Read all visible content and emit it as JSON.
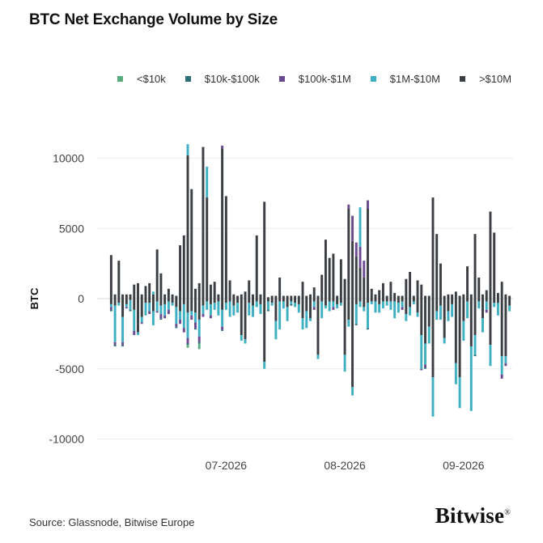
{
  "title": "BTC Net Exchange Volume by Size",
  "source": "Source: Glassnode, Bitwise Europe",
  "brand": "Bitwise",
  "brand_mark": "®",
  "chart_data": {
    "type": "bar",
    "stacked": true,
    "ylabel": "BTC",
    "xlabel": "",
    "ylim": [
      -10000,
      11000
    ],
    "yticks": [
      10000,
      5000,
      0,
      -5000,
      -10000
    ],
    "ytick_labels": [
      "10000",
      "5000",
      "0",
      "-5000",
      "-10000"
    ],
    "xtick_labels": [
      {
        "label": "07-2026",
        "at": "2026-07-01"
      },
      {
        "label": "08-2026",
        "at": "2026-08-01"
      },
      {
        "label": "09-2026",
        "at": "2026-09-01"
      }
    ],
    "grid": true,
    "legend_position": "top",
    "x": [
      "2026-06-01",
      "2026-06-02",
      "2026-06-03",
      "2026-06-04",
      "2026-06-05",
      "2026-06-06",
      "2026-06-07",
      "2026-06-08",
      "2026-06-09",
      "2026-06-10",
      "2026-06-11",
      "2026-06-12",
      "2026-06-13",
      "2026-06-14",
      "2026-06-15",
      "2026-06-16",
      "2026-06-17",
      "2026-06-18",
      "2026-06-19",
      "2026-06-20",
      "2026-06-21",
      "2026-06-22",
      "2026-06-23",
      "2026-06-24",
      "2026-06-25",
      "2026-06-26",
      "2026-06-27",
      "2026-06-28",
      "2026-06-29",
      "2026-06-30",
      "2026-07-01",
      "2026-07-02",
      "2026-07-03",
      "2026-07-04",
      "2026-07-05",
      "2026-07-06",
      "2026-07-07",
      "2026-07-08",
      "2026-07-09",
      "2026-07-10",
      "2026-07-11",
      "2026-07-12",
      "2026-07-13",
      "2026-07-14",
      "2026-07-15",
      "2026-07-16",
      "2026-07-17",
      "2026-07-18",
      "2026-07-19",
      "2026-07-20",
      "2026-07-21",
      "2026-07-22",
      "2026-07-23",
      "2026-07-24",
      "2026-07-25",
      "2026-07-26",
      "2026-07-27",
      "2026-07-28",
      "2026-07-29",
      "2026-07-30",
      "2026-07-31",
      "2026-08-01",
      "2026-08-02",
      "2026-08-03",
      "2026-08-04",
      "2026-08-05",
      "2026-08-06",
      "2026-08-07",
      "2026-08-08",
      "2026-08-09",
      "2026-08-10",
      "2026-08-11",
      "2026-08-12",
      "2026-08-13",
      "2026-08-14",
      "2026-08-15",
      "2026-08-16",
      "2026-08-17",
      "2026-08-18",
      "2026-08-19",
      "2026-08-20",
      "2026-08-21",
      "2026-08-22",
      "2026-08-23",
      "2026-08-24",
      "2026-08-25",
      "2026-08-26",
      "2026-08-27",
      "2026-08-28",
      "2026-08-29",
      "2026-08-30",
      "2026-08-31",
      "2026-09-01",
      "2026-09-02",
      "2026-09-03",
      "2026-09-04",
      "2026-09-05",
      "2026-09-06",
      "2026-09-07",
      "2026-09-08",
      "2026-09-09",
      "2026-09-10",
      "2026-09-11",
      "2026-09-12",
      "2026-09-13"
    ],
    "series": [
      {
        "name": "<$10k",
        "color": "#5aab7e",
        "values": [
          0,
          0,
          0,
          0,
          0,
          0,
          0,
          0,
          0,
          0,
          0,
          0,
          0,
          0,
          0,
          0,
          0,
          0,
          0,
          0,
          -200,
          0,
          0,
          -400,
          0,
          0,
          0,
          0,
          0,
          0,
          0,
          0,
          0,
          0,
          0,
          0,
          0,
          0,
          0,
          0,
          0,
          0,
          0,
          0,
          0,
          0,
          0,
          0,
          0,
          0,
          0,
          0,
          0,
          0,
          0,
          0,
          0,
          0,
          0,
          0,
          0,
          0,
          0,
          0,
          0,
          0,
          0,
          0,
          0,
          0,
          0,
          0,
          0,
          0,
          0,
          0,
          0,
          0,
          0,
          0,
          0,
          0,
          0,
          0,
          0,
          0,
          0,
          0,
          0,
          0,
          0,
          0,
          0,
          0,
          0,
          0,
          0,
          0,
          0,
          0,
          0,
          0,
          0,
          0,
          0
        ]
      },
      {
        "name": "$10k-$100k",
        "color": "#2f6f7a",
        "values": [
          -100,
          -100,
          0,
          -100,
          0,
          -100,
          0,
          0,
          0,
          0,
          0,
          0,
          0,
          -100,
          0,
          0,
          0,
          -100,
          0,
          0,
          -100,
          0,
          -100,
          -100,
          0,
          0,
          0,
          0,
          0,
          -100,
          0,
          0,
          0,
          0,
          0,
          0,
          0,
          0,
          0,
          0,
          0,
          -100,
          0,
          0,
          0,
          0,
          0,
          -100,
          0,
          0,
          0,
          0,
          0,
          0,
          0,
          0,
          0,
          0,
          0,
          0,
          0,
          0,
          0,
          0,
          -100,
          0,
          0,
          -100,
          0,
          0,
          0,
          0,
          0,
          0,
          0,
          0,
          0,
          0,
          0,
          0,
          0,
          0,
          -100,
          0,
          0,
          0,
          0,
          0,
          0,
          0,
          0,
          0,
          0,
          0,
          0,
          -100,
          0,
          0,
          0,
          0,
          0,
          0,
          0,
          0,
          0
        ]
      },
      {
        "name": "$100k-$1M",
        "color": "#6b4a8f",
        "values": [
          -200,
          -200,
          0,
          -200,
          -100,
          0,
          -300,
          0,
          -100,
          0,
          -200,
          0,
          -100,
          -300,
          -200,
          -300,
          0,
          -200,
          -300,
          -300,
          -400,
          -300,
          -400,
          -400,
          -200,
          0,
          -200,
          0,
          0,
          -200,
          0,
          0,
          0,
          0,
          0,
          0,
          0,
          0,
          0,
          0,
          0,
          0,
          0,
          0,
          0,
          0,
          0,
          0,
          0,
          0,
          0,
          0,
          0,
          -200,
          0,
          0,
          0,
          0,
          -200,
          0,
          0,
          0,
          0,
          0,
          0,
          0,
          0,
          0,
          0,
          0,
          0,
          0,
          0,
          0,
          0,
          0,
          -200,
          0,
          0,
          0,
          0,
          -100,
          -200,
          0,
          0,
          0,
          0,
          0,
          0,
          0,
          0,
          0,
          0,
          0,
          0,
          0,
          0,
          0,
          -200,
          0,
          0,
          0,
          -300,
          -200,
          0
        ]
      },
      {
        "name": "$1M-$10M",
        "color": "#3fb0c2",
        "values": [
          -200,
          -2600,
          -200,
          -1800,
          -200,
          -700,
          -1500,
          -200,
          -400,
          -900,
          -600,
          -1000,
          -700,
          -600,
          -800,
          -600,
          -200,
          -1200,
          -600,
          -1700,
          -1800,
          -300,
          -700,
          -1200,
          -600,
          -600,
          -800,
          -500,
          -1000,
          -1200,
          -500,
          -1100,
          -700,
          -700,
          -400,
          -300,
          -900,
          -800,
          -400,
          -700,
          -500,
          -600,
          -200,
          -1300,
          -2000,
          -500,
          -1000,
          -200,
          -300,
          -600,
          -800,
          -1200,
          -200,
          -400,
          -300,
          -1200,
          -200,
          -700,
          -400,
          -300,
          -200,
          -1200,
          -500,
          -600,
          -1400,
          -400,
          -300,
          -1800,
          -200,
          -800,
          -600,
          -500,
          -300,
          -600,
          -1200,
          -700,
          -400,
          -500,
          -600,
          -200,
          -300,
          -2400,
          -1500,
          -1200,
          -2800,
          -600,
          -1000,
          -400,
          -700,
          -900,
          -1500,
          -2200,
          -1400,
          -1200,
          -4600,
          -1400,
          -500,
          -1000,
          -600,
          -1500,
          -300,
          -900,
          -1300,
          -500,
          -400
        ]
      },
      {
        "name": ">$10M",
        "color": "#3b3f43",
        "values": [
          -400,
          -500,
          -300,
          -1300,
          -400,
          -100,
          -800,
          -2400,
          -1300,
          -300,
          -300,
          -900,
          -200,
          -500,
          -400,
          -200,
          -300,
          -600,
          -900,
          -400,
          -1000,
          -900,
          -1000,
          -1500,
          -500,
          -200,
          -400,
          -300,
          -200,
          -800,
          -300,
          -200,
          -500,
          -300,
          -2600,
          -2900,
          -300,
          -500,
          -200,
          -400,
          -4500,
          -200,
          -300,
          -1600,
          -200,
          -200,
          -600,
          -200,
          -300,
          -400,
          -1400,
          -900,
          -1400,
          -200,
          -4000,
          -200,
          -500,
          -200,
          -200,
          -400,
          -300,
          -4000,
          -1500,
          -6300,
          -400,
          -200,
          -600,
          -300,
          -200,
          -200,
          -400,
          -200,
          -200,
          -200,
          -200,
          -300,
          -200,
          -1100,
          -600,
          -200,
          -1000,
          -2600,
          -3200,
          -2000,
          -5600,
          -900,
          -500,
          -2800,
          -900,
          -400,
          -4600,
          -5600,
          -1600,
          -200,
          -3400,
          -2600,
          -200,
          -1400,
          -200,
          -3300,
          -300,
          -300,
          -4100,
          -4100,
          -500
        ]
      }
    ],
    "series_pos": [
      {
        "name": ">$10M",
        "values": [
          3100,
          300,
          2700,
          300,
          300,
          300,
          1000,
          1100,
          300,
          900,
          1100,
          300,
          3500,
          1800,
          300,
          700,
          300,
          200,
          3800,
          4500,
          10200,
          7800,
          700,
          1100,
          10800,
          7200,
          1000,
          1200,
          300,
          10700,
          7300,
          1300,
          300,
          200,
          300,
          500,
          1300,
          300,
          4500,
          300,
          6900,
          100,
          200,
          200,
          1500,
          200,
          200,
          200,
          200,
          200,
          1200,
          200,
          300,
          800,
          200,
          1700,
          4200,
          2900,
          3200,
          200,
          2800,
          1400,
          6400,
          4100,
          3000,
          2200,
          1500,
          6400,
          700,
          300,
          600,
          1100,
          200,
          1200,
          400,
          200,
          200,
          1400,
          1900,
          200,
          1300,
          1000,
          200,
          200,
          7200,
          4600,
          2500,
          200,
          300,
          300,
          500,
          200,
          300,
          2300,
          300,
          4600,
          1500,
          300,
          600,
          6200,
          4700,
          400,
          1200,
          300,
          200
        ]
      },
      {
        "name": "$100k-$1M",
        "values": [
          0,
          0,
          0,
          0,
          0,
          0,
          0,
          0,
          0,
          0,
          0,
          0,
          0,
          0,
          0,
          0,
          0,
          0,
          0,
          0,
          0,
          0,
          0,
          0,
          0,
          0,
          0,
          0,
          0,
          200,
          0,
          0,
          0,
          0,
          0,
          0,
          0,
          0,
          0,
          0,
          0,
          0,
          0,
          0,
          0,
          0,
          0,
          0,
          0,
          0,
          0,
          0,
          0,
          0,
          0,
          0,
          0,
          0,
          0,
          0,
          0,
          0,
          300,
          1800,
          1000,
          1500,
          1200,
          600,
          0,
          0,
          0,
          0,
          0,
          0,
          0,
          0,
          0,
          0,
          0,
          0,
          0,
          0,
          0,
          0,
          0,
          0,
          0,
          0,
          0,
          0,
          0,
          0,
          0,
          0,
          0,
          0,
          0,
          0,
          0,
          0,
          0,
          0,
          0,
          0
        ]
      },
      {
        "name": "$1M-$10M",
        "values": [
          0,
          0,
          0,
          0,
          0,
          0,
          0,
          0,
          0,
          0,
          0,
          200,
          0,
          0,
          0,
          0,
          0,
          0,
          0,
          0,
          800,
          0,
          0,
          0,
          0,
          2200,
          0,
          0,
          0,
          0,
          0,
          0,
          0,
          0,
          0,
          0,
          0,
          0,
          0,
          0,
          0,
          0,
          0,
          0,
          0,
          0,
          0,
          0,
          0,
          0,
          0,
          0,
          0,
          0,
          0,
          0,
          0,
          0,
          0,
          0,
          0,
          0,
          0,
          0,
          0,
          2800,
          0,
          0,
          0,
          0,
          0,
          0,
          0,
          0,
          0,
          0,
          0,
          0,
          0,
          0,
          0,
          0,
          0,
          0,
          0,
          0,
          0,
          0,
          0,
          0,
          0,
          0,
          0,
          0,
          0,
          0,
          0,
          0,
          0,
          0,
          0,
          0,
          0,
          0,
          0
        ]
      },
      {
        "name": "$10k-$100k",
        "values": [
          0,
          0,
          0,
          0,
          0,
          0,
          0,
          0,
          0,
          0,
          0,
          0,
          0,
          0,
          0,
          0,
          0,
          0,
          0,
          0,
          0,
          0,
          0,
          0,
          0,
          0,
          0,
          0,
          0,
          0,
          0,
          0,
          0,
          0,
          0,
          0,
          0,
          0,
          0,
          0,
          0,
          0,
          0,
          0,
          0,
          0,
          0,
          0,
          0,
          0,
          0,
          0,
          0,
          0,
          0,
          0,
          0,
          0,
          0,
          0,
          0,
          0,
          0,
          0,
          0,
          0,
          0,
          0,
          0,
          0,
          0,
          0,
          0,
          0,
          0,
          0,
          0,
          0,
          0,
          0,
          0,
          0,
          0,
          0,
          0,
          0,
          0,
          0,
          0,
          0,
          0,
          0,
          0,
          0,
          0,
          0,
          0,
          0,
          0,
          0,
          0,
          0,
          0,
          0,
          0
        ]
      },
      {
        "name": "<$10k",
        "values": [
          0,
          0,
          0,
          0,
          0,
          0,
          0,
          0,
          0,
          0,
          0,
          0,
          0,
          0,
          0,
          0,
          0,
          0,
          0,
          0,
          0,
          0,
          0,
          0,
          0,
          0,
          0,
          0,
          0,
          0,
          0,
          0,
          0,
          0,
          0,
          0,
          0,
          0,
          0,
          0,
          0,
          0,
          0,
          0,
          0,
          0,
          0,
          0,
          0,
          0,
          0,
          0,
          0,
          0,
          0,
          0,
          0,
          0,
          0,
          0,
          0,
          0,
          0,
          0,
          0,
          0,
          0,
          0,
          0,
          0,
          0,
          0,
          0,
          0,
          0,
          0,
          0,
          0,
          0,
          0,
          0,
          0,
          0,
          0,
          0,
          0,
          0,
          0,
          0,
          0,
          0,
          0,
          0,
          0,
          0,
          0,
          0,
          0,
          0,
          0,
          0,
          0,
          0,
          0,
          0
        ]
      }
    ]
  },
  "legend": [
    {
      "label": "<$10k",
      "color": "#5aab7e"
    },
    {
      "label": "$10k-$100k",
      "color": "#2f6f7a"
    },
    {
      "label": "$100k-$1M",
      "color": "#6b4a8f"
    },
    {
      "label": "$1M-$10M",
      "color": "#3fb0c2"
    },
    {
      "label": ">$10M",
      "color": "#3b3f43"
    }
  ]
}
